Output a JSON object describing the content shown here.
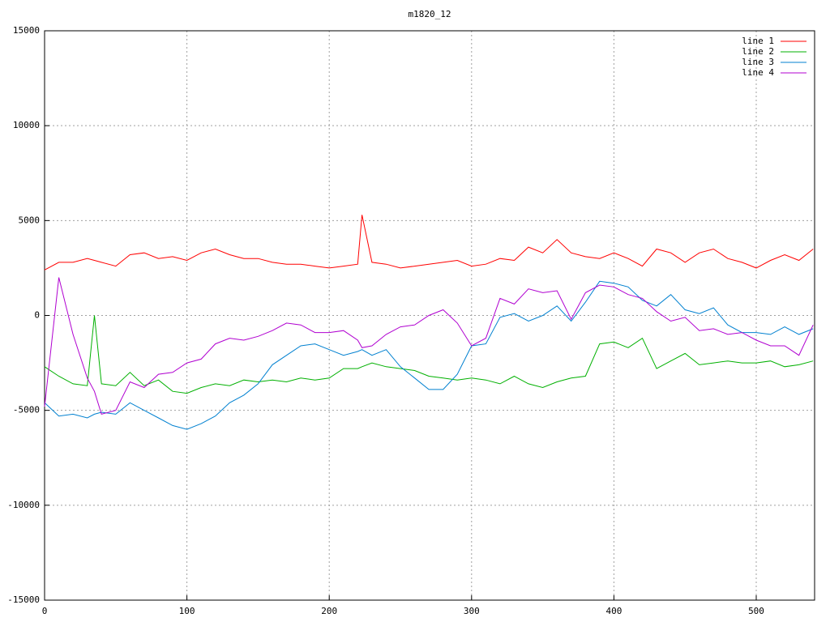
{
  "chart_data": {
    "type": "line",
    "title": "m1820_12",
    "x": [
      0,
      10,
      20,
      30,
      35,
      40,
      50,
      60,
      70,
      80,
      90,
      100,
      110,
      120,
      130,
      140,
      150,
      160,
      170,
      180,
      190,
      200,
      210,
      220,
      223,
      230,
      240,
      250,
      260,
      270,
      280,
      290,
      300,
      310,
      320,
      330,
      340,
      350,
      360,
      370,
      380,
      390,
      400,
      410,
      420,
      430,
      440,
      450,
      460,
      470,
      480,
      490,
      500,
      510,
      520,
      530,
      540
    ],
    "series": [
      {
        "name": "line 1",
        "color": "#ff0000",
        "values": [
          2400,
          2800,
          2800,
          3000,
          2900,
          2800,
          2600,
          3200,
          3300,
          3000,
          3100,
          2900,
          3300,
          3500,
          3200,
          3000,
          3000,
          2800,
          2700,
          2700,
          2600,
          2500,
          2600,
          2700,
          5300,
          2800,
          2700,
          2500,
          2600,
          2700,
          2800,
          2900,
          2600,
          2700,
          3000,
          2900,
          3600,
          3300,
          4000,
          3300,
          3100,
          3000,
          3300,
          3000,
          2600,
          3500,
          3300,
          2800,
          3300,
          3500,
          3000,
          2800,
          2500,
          2900,
          3200,
          2900,
          3500
        ]
      },
      {
        "name": "line 2",
        "color": "#00b000",
        "values": [
          -2700,
          -3200,
          -3600,
          -3700,
          0,
          -3600,
          -3700,
          -3000,
          -3700,
          -3400,
          -4000,
          -4100,
          -3800,
          -3600,
          -3700,
          -3400,
          -3500,
          -3400,
          -3500,
          -3300,
          -3400,
          -3300,
          -2800,
          -2800,
          -2700,
          -2500,
          -2700,
          -2800,
          -2900,
          -3200,
          -3300,
          -3400,
          -3300,
          -3400,
          -3600,
          -3200,
          -3600,
          -3800,
          -3500,
          -3300,
          -3200,
          -1500,
          -1400,
          -1700,
          -1200,
          -2800,
          -2400,
          -2000,
          -2600,
          -2500,
          -2400,
          -2500,
          -2500,
          -2400,
          -2700,
          -2600,
          -2400
        ]
      },
      {
        "name": "line 3",
        "color": "#0080d0",
        "values": [
          -4600,
          -5300,
          -5200,
          -5400,
          -5200,
          -5100,
          -5200,
          -4600,
          -5000,
          -5400,
          -5800,
          -6000,
          -5700,
          -5300,
          -4600,
          -4200,
          -3600,
          -2600,
          -2100,
          -1600,
          -1500,
          -1800,
          -2100,
          -1900,
          -1800,
          -2100,
          -1800,
          -2700,
          -3300,
          -3900,
          -3900,
          -3100,
          -1600,
          -1500,
          -100,
          100,
          -300,
          0,
          500,
          -300,
          700,
          1800,
          1700,
          1500,
          800,
          500,
          1100,
          300,
          100,
          400,
          -500,
          -900,
          -900,
          -1000,
          -600,
          -1000,
          -700
        ]
      },
      {
        "name": "line 4",
        "color": "#b000d0",
        "values": [
          -4800,
          2000,
          -1000,
          -3300,
          -4000,
          -5200,
          -5000,
          -3500,
          -3800,
          -3100,
          -3000,
          -2500,
          -2300,
          -1500,
          -1200,
          -1300,
          -1100,
          -800,
          -400,
          -500,
          -900,
          -900,
          -800,
          -1300,
          -1700,
          -1600,
          -1000,
          -600,
          -500,
          0,
          300,
          -400,
          -1600,
          -1200,
          900,
          600,
          1400,
          1200,
          1300,
          -200,
          1200,
          1600,
          1500,
          1100,
          900,
          200,
          -300,
          -100,
          -800,
          -700,
          -1000,
          -900,
          -1300,
          -1600,
          -1600,
          -2100,
          -500
        ]
      }
    ],
    "xlim": [
      0,
      541
    ],
    "ylim": [
      -15000,
      15000
    ],
    "xticks": [
      0,
      100,
      200,
      300,
      400,
      500
    ],
    "yticks": [
      -15000,
      -10000,
      -5000,
      0,
      5000,
      10000,
      15000
    ],
    "grid": true,
    "legend": "top-right"
  }
}
